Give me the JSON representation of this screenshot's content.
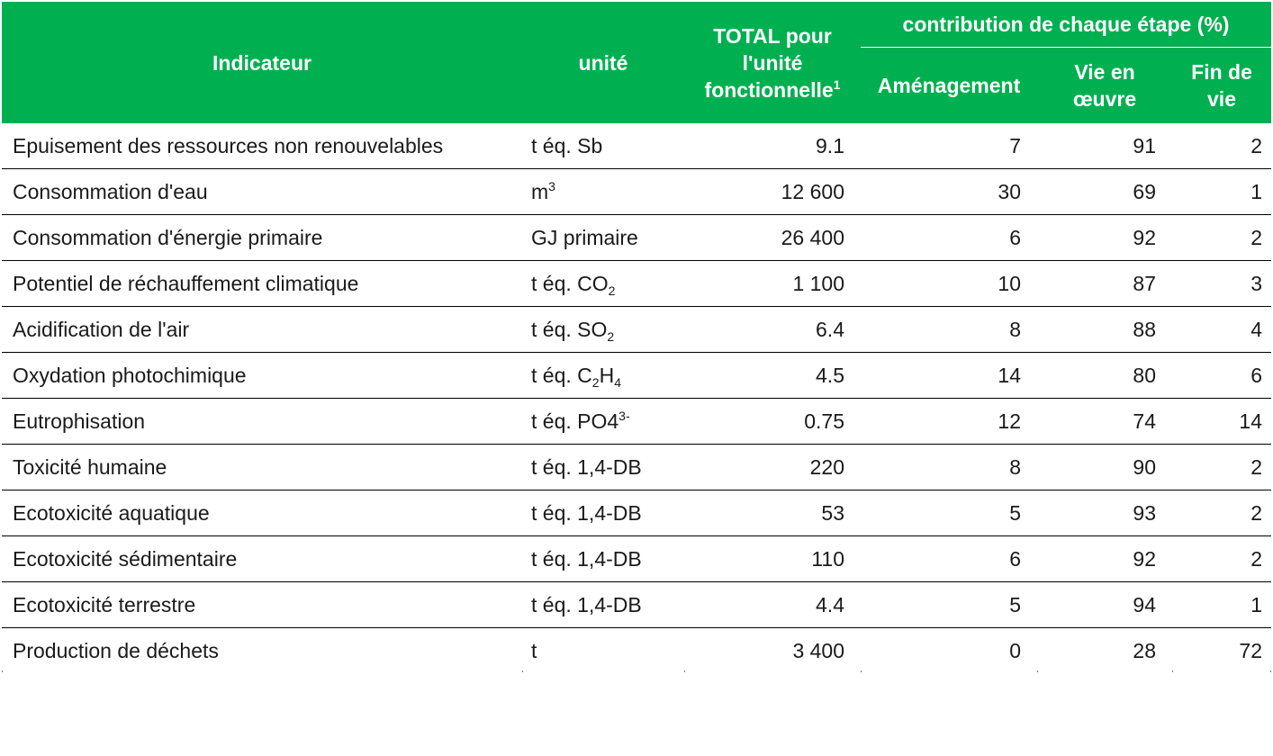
{
  "header": {
    "indicator": "Indicateur",
    "unit": "unité",
    "total_line1": "TOTAL pour",
    "total_line2": "l'unité",
    "total_line3": "fonctionnelle",
    "total_footnote": "1",
    "contribution": "contribution de chaque étape (%)",
    "stage1": "Aménagement",
    "stage2_line1": "Vie en",
    "stage2_line2": "œuvre",
    "stage3_line1": "Fin de",
    "stage3_line2": "vie"
  },
  "rows": [
    {
      "indicator": "Epuisement des ressources non renouvelables",
      "unit_base": "t éq. Sb",
      "total": "9.1",
      "amenagement": "7",
      "vie_en_oeuvre": "91",
      "fin_de_vie": "2"
    },
    {
      "indicator": "Consommation d'eau",
      "unit_base": "m",
      "unit_sup": "3",
      "total": "12 600",
      "amenagement": "30",
      "vie_en_oeuvre": "69",
      "fin_de_vie": "1"
    },
    {
      "indicator": "Consommation d'énergie primaire",
      "unit_base": "GJ primaire",
      "total": "26 400",
      "amenagement": "6",
      "vie_en_oeuvre": "92",
      "fin_de_vie": "2"
    },
    {
      "indicator": "Potentiel de réchauffement climatique",
      "unit_base": "t éq. CO",
      "unit_sub": "2",
      "total": "1 100",
      "amenagement": "10",
      "vie_en_oeuvre": "87",
      "fin_de_vie": "3"
    },
    {
      "indicator": "Acidification de l'air",
      "unit_base": "t éq. SO",
      "unit_sub": "2",
      "total": "6.4",
      "amenagement": "8",
      "vie_en_oeuvre": "88",
      "fin_de_vie": "4"
    },
    {
      "indicator": "Oxydation photochimique",
      "unit_base": "t éq. C",
      "unit_sub": "2",
      "unit_mid": "H",
      "unit_sub2": "4",
      "total": "4.5",
      "amenagement": "14",
      "vie_en_oeuvre": "80",
      "fin_de_vie": "6"
    },
    {
      "indicator": "Eutrophisation",
      "unit_base": "t éq. PO4",
      "unit_sup": "3-",
      "total": "0.75",
      "amenagement": "12",
      "vie_en_oeuvre": "74",
      "fin_de_vie": "14"
    },
    {
      "indicator": "Toxicité humaine",
      "unit_base": "t éq. 1,4-DB",
      "total": "220",
      "amenagement": "8",
      "vie_en_oeuvre": "90",
      "fin_de_vie": "2"
    },
    {
      "indicator": "Ecotoxicité aquatique",
      "unit_base": "t éq. 1,4-DB",
      "total": "53",
      "amenagement": "5",
      "vie_en_oeuvre": "93",
      "fin_de_vie": "2"
    },
    {
      "indicator": "Ecotoxicité sédimentaire",
      "unit_base": "t éq. 1,4-DB",
      "total": "110",
      "amenagement": "6",
      "vie_en_oeuvre": "92",
      "fin_de_vie": "2"
    },
    {
      "indicator": "Ecotoxicité terrestre",
      "unit_base": "t éq. 1,4-DB",
      "total": "4.4",
      "amenagement": "5",
      "vie_en_oeuvre": "94",
      "fin_de_vie": "1"
    },
    {
      "indicator": "Production de déchets",
      "unit_base": "t",
      "total": "3 400",
      "amenagement": "0",
      "vie_en_oeuvre": "28",
      "fin_de_vie": "72"
    }
  ],
  "colors": {
    "header_bg": "#00b050",
    "header_text": "#ffffff",
    "row_rule": "#000000"
  }
}
